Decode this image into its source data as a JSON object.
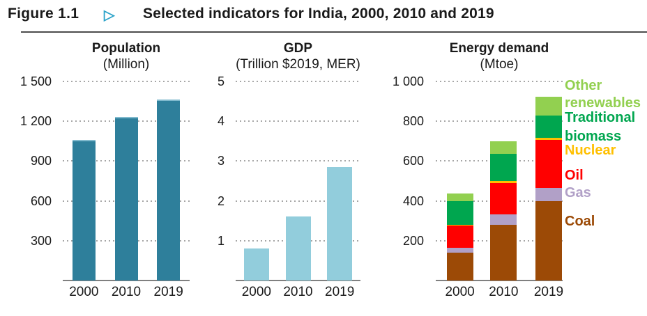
{
  "header": {
    "figure_label": "Figure 1.1",
    "pointer_icon": "▷",
    "title": "Selected indicators for India, 2000, 2010 and 2019"
  },
  "chart_data": [
    {
      "type": "bar",
      "title": "Population",
      "subtitle": "(Million)",
      "categories": [
        "2000",
        "2010",
        "2019"
      ],
      "values": [
        1057,
        1234,
        1366
      ],
      "ylim": [
        0,
        1500
      ],
      "yticks": [
        300,
        600,
        900,
        1200,
        1500
      ],
      "ytick_labels": [
        "300",
        "600",
        "900",
        "1 200",
        "1 500"
      ],
      "bar_color": "#2E7F9B",
      "grid": "dotted-horizontal"
    },
    {
      "type": "bar",
      "title": "GDP",
      "subtitle": "(Trillion $2019, MER)",
      "categories": [
        "2000",
        "2010",
        "2019"
      ],
      "values": [
        0.8,
        1.6,
        2.85
      ],
      "ylim": [
        0,
        5
      ],
      "yticks": [
        1,
        2,
        3,
        4,
        5
      ],
      "ytick_labels": [
        "1",
        "2",
        "3",
        "4",
        "5"
      ],
      "bar_color": "#92CDDC",
      "grid": "dotted-horizontal"
    },
    {
      "type": "stacked-bar",
      "title": "Energy demand",
      "subtitle": "(Mtoe)",
      "categories": [
        "2000",
        "2010",
        "2019"
      ],
      "series": [
        {
          "name": "Coal",
          "color": "#9C4A06",
          "values": [
            140,
            280,
            400
          ]
        },
        {
          "name": "Gas",
          "color": "#B1A0C7",
          "values": [
            25,
            52,
            65
          ]
        },
        {
          "name": "Oil",
          "color": "#FF0000",
          "values": [
            112,
            157,
            240
          ]
        },
        {
          "name": "Nuclear",
          "color": "#FFC000",
          "values": [
            4,
            11,
            12
          ]
        },
        {
          "name": "Traditional biomass",
          "color": "#00A64F",
          "values": [
            117,
            135,
            110
          ]
        },
        {
          "name": "Other renewables",
          "color": "#92D050",
          "values": [
            40,
            65,
            95
          ]
        }
      ],
      "totals": [
        438,
        700,
        922
      ],
      "ylim": [
        0,
        1000
      ],
      "yticks": [
        200,
        400,
        600,
        800,
        1000
      ],
      "ytick_labels": [
        "200",
        "400",
        "600",
        "800",
        "1 000"
      ],
      "legend_position": "right",
      "legend_lines": [
        {
          "text": "Other",
          "color": "#92D050"
        },
        {
          "text": "renewables",
          "color": "#92D050"
        },
        {
          "text": "Traditional",
          "color": "#00A64F"
        },
        {
          "text": "biomass",
          "color": "#00A64F"
        },
        {
          "text": "Nuclear",
          "color": "#FFC000"
        },
        {
          "text": "Oil",
          "color": "#FF0000"
        },
        {
          "text": "Gas",
          "color": "#B1A0C7"
        },
        {
          "text": "Coal",
          "color": "#9C4A06"
        }
      ],
      "grid": "dotted-horizontal"
    }
  ],
  "colors": {
    "pointer_teal": "#2BA3C9",
    "grid_dots": "#A6A6A6",
    "axis_line": "#808080",
    "divider": "#4D4D4D",
    "text": "#1A1A1A"
  }
}
